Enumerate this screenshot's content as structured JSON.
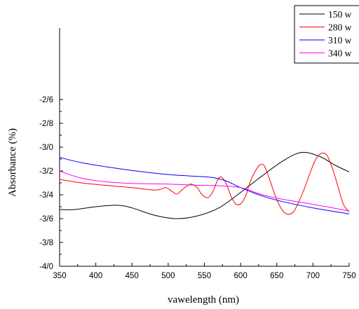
{
  "chart_data": {
    "type": "line",
    "xlabel": "vawelength (nm)",
    "ylabel": "Absorbance (%)",
    "xlim": [
      350,
      750
    ],
    "ylim": [
      0,
      1
    ],
    "x_ticks": [
      350,
      400,
      450,
      500,
      550,
      600,
      650,
      700,
      750
    ],
    "y_ticks": [
      {
        "value": 0.0,
        "label": "-4/0"
      },
      {
        "value": 0.1,
        "label": "-3/8"
      },
      {
        "value": 0.2,
        "label": "-3/6"
      },
      {
        "value": 0.3,
        "label": "-3/4"
      },
      {
        "value": 0.4,
        "label": "-3/2"
      },
      {
        "value": 0.5,
        "label": "-3/0"
      },
      {
        "value": 0.6,
        "label": "-2/8"
      },
      {
        "value": 0.7,
        "label": "-2/6"
      }
    ],
    "grid": false,
    "legend_position": "top-right",
    "series": [
      {
        "name": "150 w",
        "color": "#000000",
        "x": [
          350,
          370,
          400,
          430,
          450,
          480,
          510,
          540,
          570,
          600,
          630,
          660,
          685,
          710,
          730,
          750
        ],
        "y": [
          0.238,
          0.238,
          0.25,
          0.256,
          0.245,
          0.215,
          0.2,
          0.211,
          0.245,
          0.31,
          0.38,
          0.445,
          0.478,
          0.46,
          0.425,
          0.396
        ]
      },
      {
        "name": "280 w",
        "color": "#ff0000",
        "x": [
          350,
          380,
          420,
          450,
          480,
          490,
          497,
          505,
          512,
          518,
          525,
          532,
          540,
          547,
          555,
          562,
          568,
          573,
          580,
          587,
          593,
          600,
          607,
          613,
          620,
          627,
          633,
          640,
          648,
          657,
          665,
          673,
          680,
          688,
          697,
          705,
          713,
          720,
          728,
          735,
          742,
          750
        ],
        "y": [
          0.365,
          0.35,
          0.338,
          0.33,
          0.32,
          0.324,
          0.33,
          0.315,
          0.303,
          0.318,
          0.335,
          0.345,
          0.33,
          0.3,
          0.288,
          0.315,
          0.36,
          0.375,
          0.348,
          0.292,
          0.262,
          0.262,
          0.295,
          0.352,
          0.398,
          0.426,
          0.42,
          0.365,
          0.295,
          0.238,
          0.218,
          0.228,
          0.268,
          0.325,
          0.4,
          0.455,
          0.475,
          0.462,
          0.4,
          0.33,
          0.26,
          0.228
        ]
      },
      {
        "name": "310 w",
        "color": "#0000ff",
        "x": [
          350,
          380,
          420,
          460,
          500,
          530,
          560,
          580,
          600,
          630,
          660,
          700,
          750
        ],
        "y": [
          0.457,
          0.435,
          0.415,
          0.398,
          0.385,
          0.379,
          0.373,
          0.358,
          0.33,
          0.295,
          0.27,
          0.245,
          0.22
        ]
      },
      {
        "name": "340 w",
        "color": "#ff00ff",
        "x": [
          350,
          380,
          420,
          460,
          500,
          540,
          570,
          600,
          630,
          660,
          700,
          750
        ],
        "y": [
          0.4,
          0.37,
          0.353,
          0.347,
          0.345,
          0.34,
          0.338,
          0.33,
          0.3,
          0.28,
          0.26,
          0.232
        ]
      }
    ]
  }
}
